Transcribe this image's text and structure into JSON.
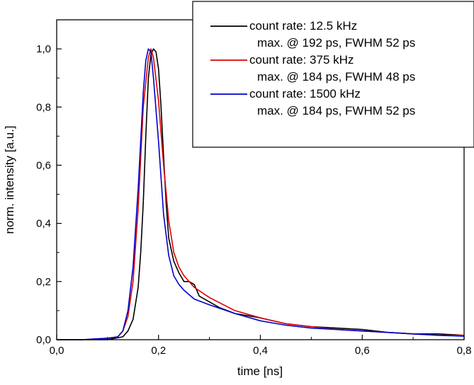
{
  "chart_data": {
    "type": "line",
    "xlabel": "time [ns]",
    "ylabel": "norm. intensity [a.u.]",
    "xlim": [
      0.0,
      0.8
    ],
    "ylim": [
      0.0,
      1.1
    ],
    "x_ticks": [
      "0,0",
      "0,2",
      "0,4",
      "0,6",
      "0,8"
    ],
    "y_ticks": [
      "0,0",
      "0,2",
      "0,4",
      "0,6",
      "0,8",
      "1,0"
    ],
    "grid": false,
    "legend_position": "top-right",
    "series": [
      {
        "name": "count rate: 12.5 kHz",
        "detail": "max. @ 192 ps, FWHM 52 ps",
        "color": "#000000",
        "x": [
          0.0,
          0.05,
          0.1,
          0.13,
          0.14,
          0.15,
          0.16,
          0.165,
          0.17,
          0.175,
          0.18,
          0.185,
          0.19,
          0.195,
          0.2,
          0.205,
          0.21,
          0.215,
          0.22,
          0.23,
          0.24,
          0.25,
          0.26,
          0.27,
          0.28,
          0.3,
          0.32,
          0.35,
          0.4,
          0.45,
          0.5,
          0.55,
          0.6,
          0.65,
          0.7,
          0.75,
          0.8
        ],
        "y": [
          0.0,
          0.0,
          0.0,
          0.01,
          0.03,
          0.07,
          0.18,
          0.3,
          0.47,
          0.7,
          0.9,
          0.98,
          1.0,
          0.99,
          0.93,
          0.8,
          0.63,
          0.47,
          0.35,
          0.27,
          0.23,
          0.2,
          0.2,
          0.19,
          0.15,
          0.13,
          0.11,
          0.09,
          0.075,
          0.055,
          0.045,
          0.04,
          0.035,
          0.025,
          0.02,
          0.02,
          0.015
        ]
      },
      {
        "name": "count rate: 375 kHz",
        "detail": "max. @ 184 ps, FWHM 48 ps",
        "color": "#dd0000",
        "x": [
          0.0,
          0.05,
          0.1,
          0.12,
          0.13,
          0.14,
          0.15,
          0.16,
          0.17,
          0.18,
          0.185,
          0.19,
          0.2,
          0.21,
          0.22,
          0.23,
          0.24,
          0.25,
          0.27,
          0.3,
          0.35,
          0.4,
          0.45,
          0.5,
          0.55,
          0.6,
          0.65,
          0.7,
          0.75,
          0.8
        ],
        "y": [
          0.0,
          0.0,
          0.005,
          0.01,
          0.03,
          0.08,
          0.2,
          0.45,
          0.8,
          0.97,
          1.0,
          0.97,
          0.82,
          0.6,
          0.41,
          0.3,
          0.25,
          0.22,
          0.18,
          0.145,
          0.1,
          0.075,
          0.055,
          0.045,
          0.035,
          0.03,
          0.025,
          0.02,
          0.015,
          0.015
        ]
      },
      {
        "name": "count rate: 1500 kHz",
        "detail": "max. @ 184 ps, FWHM 52 ps",
        "color": "#0000cc",
        "x": [
          0.0,
          0.05,
          0.1,
          0.12,
          0.13,
          0.14,
          0.15,
          0.16,
          0.17,
          0.175,
          0.18,
          0.185,
          0.19,
          0.2,
          0.21,
          0.22,
          0.23,
          0.24,
          0.25,
          0.27,
          0.3,
          0.35,
          0.4,
          0.45,
          0.5,
          0.55,
          0.6,
          0.65,
          0.7,
          0.75,
          0.8
        ],
        "y": [
          0.0,
          0.0,
          0.005,
          0.01,
          0.03,
          0.1,
          0.25,
          0.52,
          0.85,
          0.96,
          1.0,
          0.99,
          0.9,
          0.68,
          0.43,
          0.29,
          0.22,
          0.19,
          0.17,
          0.14,
          0.12,
          0.09,
          0.065,
          0.05,
          0.04,
          0.035,
          0.03,
          0.025,
          0.02,
          0.015,
          0.012
        ]
      }
    ]
  }
}
